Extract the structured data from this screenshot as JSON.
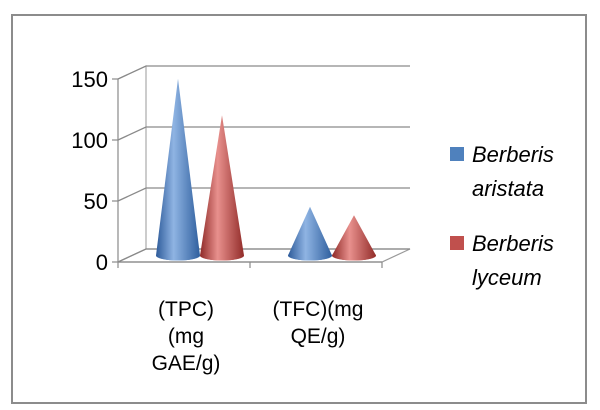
{
  "chart_data": {
    "type": "bar",
    "style": "3d-cone",
    "title": "",
    "xlabel": "",
    "ylabel": "",
    "ylim": [
      0,
      150
    ],
    "yticks": [
      0,
      50,
      100,
      150
    ],
    "grid": true,
    "legend_position": "right",
    "categories": [
      [
        "(TPC)",
        "(mg",
        "GAE/g)"
      ],
      [
        "(TFC)(mg",
        "QE/g)"
      ]
    ],
    "series": [
      {
        "name": [
          "Berberis",
          "aristata"
        ],
        "values": [
          145,
          40
        ],
        "color": "#4f81bd"
      },
      {
        "name": [
          "Berberis",
          "lyceum"
        ],
        "values": [
          115,
          33
        ],
        "color": "#c0504d"
      }
    ]
  }
}
